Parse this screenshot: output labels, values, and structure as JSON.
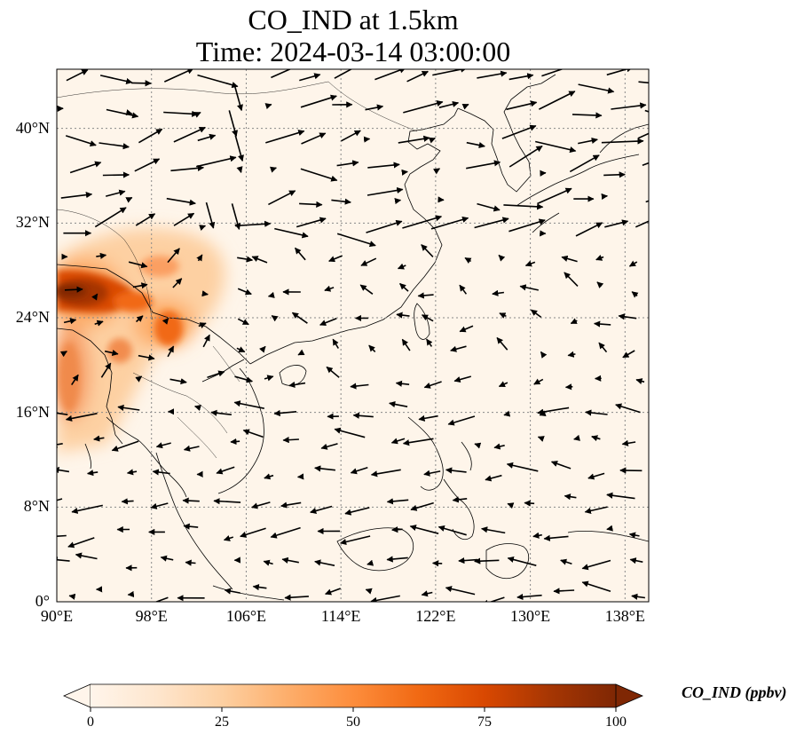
{
  "title": {
    "line1": "CO_IND at 1.5km",
    "line2": "Time: 2024-03-14 03:00:00"
  },
  "axes": {
    "lat_labels": [
      {
        "value": 0,
        "text": "0°"
      },
      {
        "value": 8,
        "text": "8°N"
      },
      {
        "value": 16,
        "text": "16°N"
      },
      {
        "value": 24,
        "text": "24°N"
      },
      {
        "value": 32,
        "text": "32°N"
      },
      {
        "value": 40,
        "text": "40°N"
      }
    ],
    "lon_labels": [
      {
        "value": 90,
        "text": "90°E"
      },
      {
        "value": 98,
        "text": "98°E"
      },
      {
        "value": 106,
        "text": "106°E"
      },
      {
        "value": 114,
        "text": "114°E"
      },
      {
        "value": 122,
        "text": "122°E"
      },
      {
        "value": 130,
        "text": "130°E"
      },
      {
        "value": 138,
        "text": "138°E"
      }
    ],
    "lon_range": [
      90,
      140
    ],
    "lat_range": [
      0,
      45
    ],
    "gridlines": "dotted"
  },
  "colorbar": {
    "label": "CO_IND (ppbv)",
    "ticks": [
      "0",
      "25",
      "50",
      "75",
      "100"
    ],
    "range": [
      0,
      100
    ],
    "extend": "both",
    "colors": [
      "#fff5eb",
      "#fee6ce",
      "#fdd0a2",
      "#fdae6b",
      "#fd8d3c",
      "#f16913",
      "#d94801",
      "#a63603",
      "#7f2704"
    ]
  },
  "colors": {
    "background_field": "#fef5ea",
    "coastline": "#000000",
    "gridline": "#888888",
    "wind_arrow": "#000000"
  }
}
